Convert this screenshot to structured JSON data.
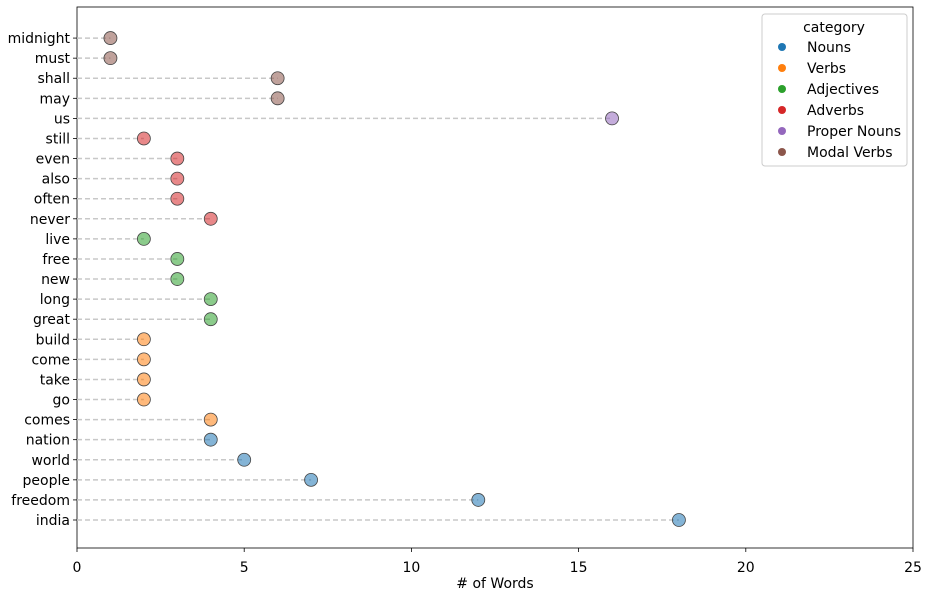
{
  "chart_data": {
    "type": "scatter",
    "xlabel": "# of Words",
    "xlim": [
      0,
      25
    ],
    "xticks": [
      0,
      5,
      10,
      15,
      20,
      25
    ],
    "grid": false,
    "legend_placement": "top-right",
    "legend_title": "category",
    "categories": [
      "midnight",
      "must",
      "shall",
      "may",
      "us",
      "still",
      "even",
      "also",
      "often",
      "never",
      "live",
      "free",
      "new",
      "long",
      "great",
      "build",
      "come",
      "take",
      "go",
      "comes",
      "nation",
      "world",
      "people",
      "freedom",
      "india"
    ],
    "series": [
      {
        "name": "Nouns",
        "color": "#1f77b4",
        "points": [
          {
            "word": "nation",
            "value": 4
          },
          {
            "word": "world",
            "value": 5
          },
          {
            "word": "people",
            "value": 7
          },
          {
            "word": "freedom",
            "value": 12
          },
          {
            "word": "india",
            "value": 18
          }
        ]
      },
      {
        "name": "Verbs",
        "color": "#ff7f0e",
        "points": [
          {
            "word": "build",
            "value": 2
          },
          {
            "word": "come",
            "value": 2
          },
          {
            "word": "take",
            "value": 2
          },
          {
            "word": "go",
            "value": 2
          },
          {
            "word": "comes",
            "value": 4
          }
        ]
      },
      {
        "name": "Adjectives",
        "color": "#2ca02c",
        "points": [
          {
            "word": "live",
            "value": 2
          },
          {
            "word": "free",
            "value": 3
          },
          {
            "word": "new",
            "value": 3
          },
          {
            "word": "long",
            "value": 4
          },
          {
            "word": "great",
            "value": 4
          }
        ]
      },
      {
        "name": "Adverbs",
        "color": "#d62728",
        "points": [
          {
            "word": "still",
            "value": 2
          },
          {
            "word": "even",
            "value": 3
          },
          {
            "word": "also",
            "value": 3
          },
          {
            "word": "often",
            "value": 3
          },
          {
            "word": "never",
            "value": 4
          }
        ]
      },
      {
        "name": "Proper Nouns",
        "color": "#9467bd",
        "points": [
          {
            "word": "us",
            "value": 16
          }
        ]
      },
      {
        "name": "Modal Verbs",
        "color": "#8c564b",
        "points": [
          {
            "word": "midnight",
            "value": 1
          },
          {
            "word": "must",
            "value": 1
          },
          {
            "word": "shall",
            "value": 6
          },
          {
            "word": "may",
            "value": 6
          }
        ]
      }
    ]
  }
}
